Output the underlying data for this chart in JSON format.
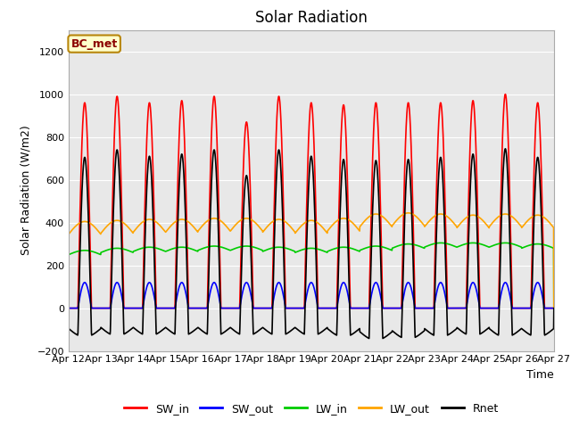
{
  "title": "Solar Radiation",
  "xlabel": "Time",
  "ylabel": "Solar Radiation (W/m2)",
  "ylim": [
    -200,
    1300
  ],
  "yticks": [
    -200,
    0,
    200,
    400,
    600,
    800,
    1000,
    1200
  ],
  "start_day": 12,
  "end_day": 27,
  "num_days": 15,
  "points_per_day": 144,
  "bg_color": "#e8e8e8",
  "colors": {
    "SW_in": "#ff0000",
    "SW_out": "#0000ff",
    "LW_in": "#00cc00",
    "LW_out": "#ffa500",
    "Rnet": "#000000"
  },
  "linewidth": 1.2,
  "annotation_text": "BC_met",
  "annotation_color": "#8b0000",
  "annotation_bg": "#ffffcc",
  "annotation_border": "#b8860b"
}
